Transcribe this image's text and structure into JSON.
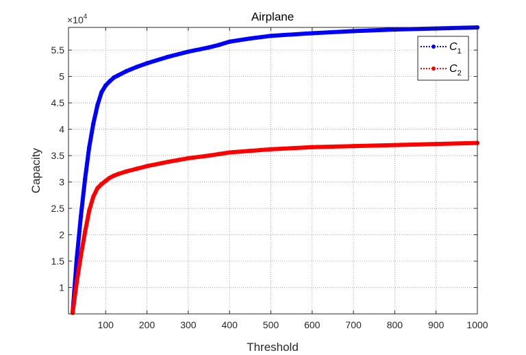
{
  "chart_data": {
    "type": "line",
    "title": "Airplane",
    "xlabel": "Threshold",
    "ylabel": "Capacity",
    "y_multiplier_label": "×10",
    "y_multiplier_exponent": "4",
    "xlim": [
      10,
      1000
    ],
    "ylim": [
      0.5,
      5.93
    ],
    "x_ticks": [
      100,
      200,
      300,
      400,
      500,
      600,
      700,
      800,
      900,
      1000
    ],
    "y_ticks": [
      1,
      1.5,
      2,
      2.5,
      3,
      3.5,
      4,
      4.5,
      5,
      5.5
    ],
    "grid": true,
    "grid_style": "dotted",
    "legend_position": "top-right",
    "series": [
      {
        "name": "C1",
        "name_main": "C",
        "name_sub": "1",
        "color": "#0000ff",
        "x": [
          20,
          30,
          40,
          50,
          60,
          70,
          80,
          90,
          100,
          110,
          120,
          130,
          150,
          175,
          200,
          250,
          300,
          350,
          375,
          400,
          450,
          500,
          600,
          700,
          800,
          900,
          1000
        ],
        "y": [
          0.52,
          1.55,
          2.35,
          3.05,
          3.65,
          4.1,
          4.45,
          4.7,
          4.83,
          4.91,
          4.98,
          5.02,
          5.1,
          5.18,
          5.25,
          5.37,
          5.47,
          5.55,
          5.6,
          5.66,
          5.72,
          5.77,
          5.82,
          5.86,
          5.89,
          5.91,
          5.93
        ]
      },
      {
        "name": "C2",
        "name_main": "C",
        "name_sub": "2",
        "color": "#ff0000",
        "x": [
          20,
          30,
          40,
          50,
          60,
          70,
          80,
          90,
          100,
          110,
          120,
          130,
          150,
          175,
          200,
          250,
          300,
          350,
          375,
          400,
          450,
          500,
          600,
          700,
          800,
          900,
          1000
        ],
        "y": [
          0.52,
          1.1,
          1.6,
          2.05,
          2.45,
          2.72,
          2.88,
          2.96,
          3.02,
          3.08,
          3.12,
          3.15,
          3.2,
          3.25,
          3.3,
          3.38,
          3.45,
          3.5,
          3.53,
          3.56,
          3.59,
          3.62,
          3.66,
          3.68,
          3.7,
          3.72,
          3.74
        ]
      }
    ]
  }
}
